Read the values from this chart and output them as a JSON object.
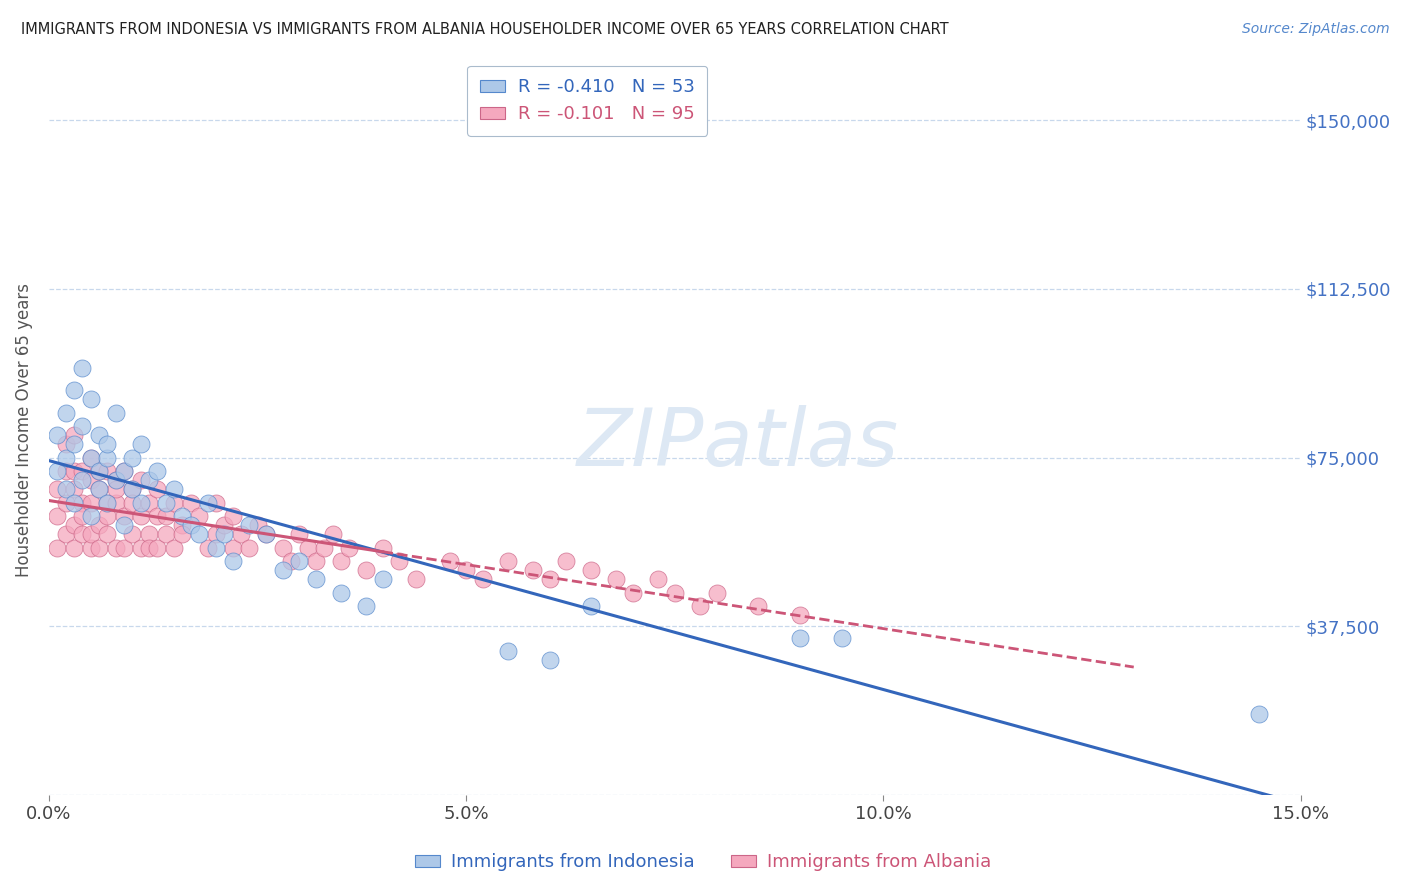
{
  "title": "IMMIGRANTS FROM INDONESIA VS IMMIGRANTS FROM ALBANIA HOUSEHOLDER INCOME OVER 65 YEARS CORRELATION CHART",
  "source": "Source: ZipAtlas.com",
  "ylabel": "Householder Income Over 65 years",
  "xlim": [
    0.0,
    0.15
  ],
  "ylim": [
    0,
    162500
  ],
  "yticks": [
    0,
    37500,
    75000,
    112500,
    150000
  ],
  "ytick_labels": [
    "",
    "$37,500",
    "$75,000",
    "$112,500",
    "$150,000"
  ],
  "xtick_labels": [
    "0.0%",
    "5.0%",
    "10.0%",
    "15.0%"
  ],
  "xticks": [
    0.0,
    0.05,
    0.1,
    0.15
  ],
  "indonesia_R": -0.41,
  "indonesia_N": 53,
  "albania_R": -0.101,
  "albania_N": 95,
  "indonesia_color": "#adc8e8",
  "albania_color": "#f5a8be",
  "indonesia_edge_color": "#5588cc",
  "albania_edge_color": "#cc6688",
  "indonesia_line_color": "#3366bb",
  "albania_line_color": "#cc5577",
  "background_color": "#ffffff",
  "grid_color": "#c8d8ec",
  "watermark_color": "#dde8f4",
  "indonesia_x": [
    0.001,
    0.001,
    0.002,
    0.002,
    0.002,
    0.003,
    0.003,
    0.003,
    0.004,
    0.004,
    0.004,
    0.005,
    0.005,
    0.005,
    0.006,
    0.006,
    0.006,
    0.007,
    0.007,
    0.007,
    0.008,
    0.008,
    0.009,
    0.009,
    0.01,
    0.01,
    0.011,
    0.011,
    0.012,
    0.013,
    0.014,
    0.015,
    0.016,
    0.017,
    0.018,
    0.019,
    0.02,
    0.021,
    0.022,
    0.024,
    0.026,
    0.028,
    0.03,
    0.032,
    0.035,
    0.038,
    0.04,
    0.055,
    0.06,
    0.065,
    0.09,
    0.095,
    0.145
  ],
  "indonesia_y": [
    80000,
    72000,
    68000,
    75000,
    85000,
    78000,
    65000,
    90000,
    70000,
    82000,
    95000,
    75000,
    62000,
    88000,
    72000,
    68000,
    80000,
    75000,
    65000,
    78000,
    70000,
    85000,
    72000,
    60000,
    75000,
    68000,
    78000,
    65000,
    70000,
    72000,
    65000,
    68000,
    62000,
    60000,
    58000,
    65000,
    55000,
    58000,
    52000,
    60000,
    58000,
    50000,
    52000,
    48000,
    45000,
    42000,
    48000,
    32000,
    30000,
    42000,
    35000,
    35000,
    18000
  ],
  "albania_x": [
    0.001,
    0.001,
    0.001,
    0.002,
    0.002,
    0.002,
    0.002,
    0.003,
    0.003,
    0.003,
    0.003,
    0.003,
    0.004,
    0.004,
    0.004,
    0.004,
    0.005,
    0.005,
    0.005,
    0.005,
    0.005,
    0.006,
    0.006,
    0.006,
    0.006,
    0.007,
    0.007,
    0.007,
    0.007,
    0.008,
    0.008,
    0.008,
    0.008,
    0.009,
    0.009,
    0.009,
    0.01,
    0.01,
    0.01,
    0.011,
    0.011,
    0.011,
    0.012,
    0.012,
    0.012,
    0.013,
    0.013,
    0.013,
    0.014,
    0.014,
    0.015,
    0.015,
    0.016,
    0.016,
    0.017,
    0.018,
    0.019,
    0.02,
    0.02,
    0.021,
    0.022,
    0.022,
    0.023,
    0.024,
    0.025,
    0.026,
    0.028,
    0.029,
    0.03,
    0.031,
    0.032,
    0.033,
    0.034,
    0.035,
    0.036,
    0.038,
    0.04,
    0.042,
    0.044,
    0.048,
    0.05,
    0.052,
    0.055,
    0.058,
    0.06,
    0.062,
    0.065,
    0.068,
    0.07,
    0.073,
    0.075,
    0.078,
    0.08,
    0.085,
    0.09
  ],
  "albania_y": [
    62000,
    55000,
    68000,
    72000,
    58000,
    65000,
    78000,
    60000,
    72000,
    55000,
    80000,
    68000,
    65000,
    72000,
    58000,
    62000,
    70000,
    65000,
    55000,
    75000,
    58000,
    68000,
    72000,
    60000,
    55000,
    65000,
    72000,
    58000,
    62000,
    70000,
    65000,
    55000,
    68000,
    62000,
    55000,
    72000,
    68000,
    58000,
    65000,
    62000,
    55000,
    70000,
    65000,
    58000,
    55000,
    62000,
    68000,
    55000,
    62000,
    58000,
    65000,
    55000,
    60000,
    58000,
    65000,
    62000,
    55000,
    58000,
    65000,
    60000,
    55000,
    62000,
    58000,
    55000,
    60000,
    58000,
    55000,
    52000,
    58000,
    55000,
    52000,
    55000,
    58000,
    52000,
    55000,
    50000,
    55000,
    52000,
    48000,
    52000,
    50000,
    48000,
    52000,
    50000,
    48000,
    52000,
    50000,
    48000,
    45000,
    48000,
    45000,
    42000,
    45000,
    42000,
    40000
  ]
}
